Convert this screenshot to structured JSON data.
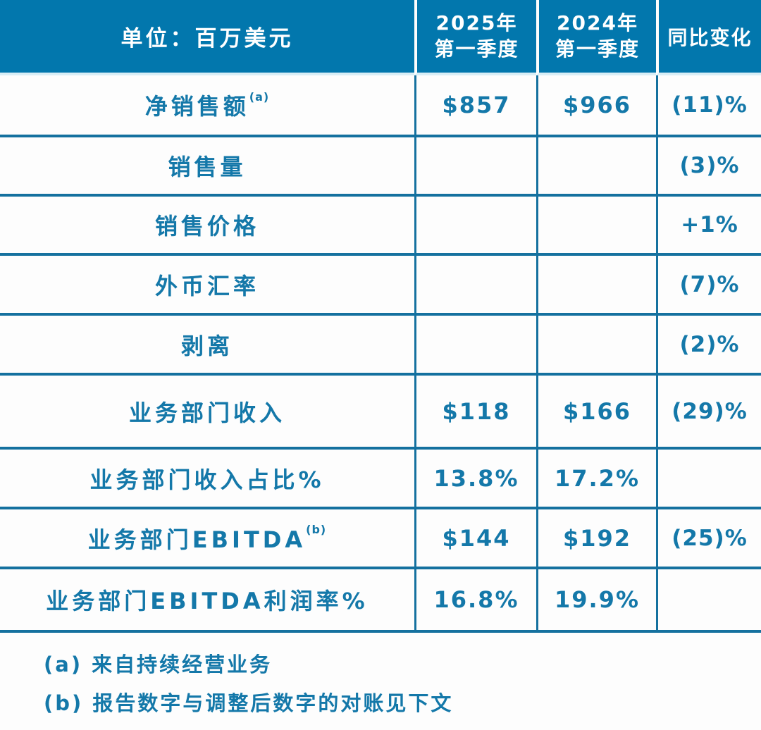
{
  "colors": {
    "header_bg": "#0277ad",
    "header_text": "#ffffff",
    "grid_line": "#15719f",
    "body_text": "#1478a9",
    "page_bg": "#fdfdfd",
    "header_underline": "#d9eef6"
  },
  "table": {
    "header": {
      "unit_label": "单位：百万美元",
      "col_2025_line1": "2025年",
      "col_2025_line2": "第一季度",
      "col_2024_line1": "2024年",
      "col_2024_line2": "第一季度",
      "col_change": "同比变化"
    },
    "rows": [
      {
        "label": "净销售额",
        "sup": "(a)",
        "v2025": "$857",
        "v2024": "$966",
        "change": "(11)%"
      },
      {
        "label": "销售量",
        "sup": "",
        "v2025": "",
        "v2024": "",
        "change": "(3)%"
      },
      {
        "label": "销售价格",
        "sup": "",
        "v2025": "",
        "v2024": "",
        "change": "+1%"
      },
      {
        "label": "外币汇率",
        "sup": "",
        "v2025": "",
        "v2024": "",
        "change": "(7)%"
      },
      {
        "label": "剥离",
        "sup": "",
        "v2025": "",
        "v2024": "",
        "change": "(2)%"
      },
      {
        "label": "业务部门收入",
        "sup": "",
        "v2025": "$118",
        "v2024": "$166",
        "change": "(29)%"
      },
      {
        "label": "业务部门收入占比%",
        "sup": "",
        "v2025": "13.8%",
        "v2024": "17.2%",
        "change": ""
      },
      {
        "label": "业务部门EBITDA",
        "sup": "(b)",
        "v2025": "$144",
        "v2024": "$192",
        "change": "(25)%"
      },
      {
        "label": "业务部门EBITDA利润率%",
        "sup": "",
        "v2025": "16.8%",
        "v2024": "19.9%",
        "change": ""
      }
    ]
  },
  "footnotes": {
    "a": "(a) 来自持续经营业务",
    "b": "(b) 报告数字与调整后数字的对账见下文"
  }
}
